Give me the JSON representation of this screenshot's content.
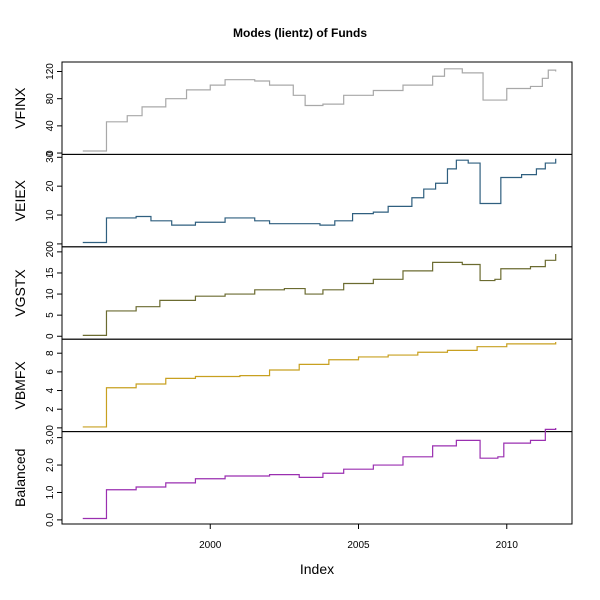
{
  "title": "Modes (lientz) of Funds",
  "xaxis": {
    "label": "Index",
    "xlim": [
      1995,
      2012.2
    ],
    "xticks": [
      2000,
      2005,
      2010
    ]
  },
  "chart_data": [
    {
      "type": "line",
      "ylabel": "VFINX",
      "color": "#a8a8a8",
      "ylim": [
        -2,
        134
      ],
      "yticks": [
        0,
        40,
        80,
        120
      ],
      "x": [
        1995.7,
        1996.5,
        1997.2,
        1997.7,
        1998.5,
        1999.2,
        2000,
        2000.5,
        2001.5,
        2002,
        2002.8,
        2003.2,
        2003.8,
        2004.5,
        2005.5,
        2006.5,
        2007.5,
        2007.9,
        2008.5,
        2009.2,
        2009.7,
        2010,
        2010.8,
        2011.2,
        2011.4,
        2011.65
      ],
      "values": [
        3,
        46,
        55,
        68,
        80,
        93,
        100,
        108,
        106,
        100,
        85,
        70,
        72,
        85,
        92,
        100,
        113,
        124,
        118,
        78,
        78,
        95,
        98,
        110,
        122,
        120
      ]
    },
    {
      "type": "line",
      "ylabel": "VEIEX",
      "color": "#2f5f7f",
      "ylim": [
        -1,
        31
      ],
      "yticks": [
        0,
        10,
        20,
        30
      ],
      "x": [
        1995.7,
        1996.5,
        1997.5,
        1998,
        1998.7,
        1999.5,
        2000.5,
        2001.5,
        2002,
        2003,
        2003.7,
        2004.2,
        2004.8,
        2005.5,
        2006,
        2006.8,
        2007.2,
        2007.6,
        2008,
        2008.3,
        2008.7,
        2009.1,
        2009.6,
        2009.8,
        2010.5,
        2011,
        2011.3,
        2011.65
      ],
      "values": [
        0.5,
        9,
        9.5,
        8,
        6.5,
        7.5,
        9,
        8,
        7,
        7,
        6.5,
        8,
        10.5,
        11,
        13,
        16,
        19,
        21,
        26,
        29,
        28,
        14,
        14,
        23,
        24,
        26,
        28,
        29.5
      ]
    },
    {
      "type": "line",
      "ylabel": "VGSTX",
      "color": "#6b6b30",
      "ylim": [
        -0.7,
        21.2
      ],
      "yticks": [
        0,
        5,
        10,
        15,
        20
      ],
      "x": [
        1995.7,
        1996.5,
        1997.5,
        1998.3,
        1999.5,
        2000.5,
        2001.5,
        2002.5,
        2003.2,
        2003.8,
        2004.5,
        2005.5,
        2006.5,
        2007.5,
        2008.5,
        2009.1,
        2009.6,
        2009.8,
        2010.8,
        2011.3,
        2011.65
      ],
      "values": [
        0.2,
        6,
        7,
        8.5,
        9.5,
        10,
        11,
        11.3,
        10,
        11,
        12.5,
        13.5,
        15.5,
        17.5,
        17,
        13.2,
        13.5,
        16,
        16.5,
        18,
        19.5
      ]
    },
    {
      "type": "line",
      "ylabel": "VBMFX",
      "color": "#c8a020",
      "ylim": [
        -0.4,
        9.5
      ],
      "yticks": [
        0,
        2,
        4,
        6,
        8
      ],
      "x": [
        1995.7,
        1996.5,
        1997.5,
        1998.5,
        1999.5,
        2001,
        2002,
        2003,
        2004,
        2005,
        2006,
        2007,
        2008,
        2009,
        2010,
        2011.65
      ],
      "values": [
        0.1,
        4.3,
        4.7,
        5.3,
        5.5,
        5.6,
        6.2,
        6.8,
        7.3,
        7.6,
        7.8,
        8.1,
        8.3,
        8.7,
        9.0,
        9.2
      ]
    },
    {
      "type": "line",
      "ylabel": "Balanced",
      "color": "#9a2fb0",
      "ylim": [
        -0.15,
        3.22
      ],
      "yticks": [
        {
          "value": 0,
          "label": "0.0"
        },
        {
          "value": 1,
          "label": "1.0"
        },
        {
          "value": 2,
          "label": "2.0"
        },
        {
          "value": 3,
          "label": "3.0"
        }
      ],
      "x": [
        1995.7,
        1996.5,
        1997.5,
        1998.5,
        1999.5,
        2000.5,
        2002,
        2003,
        2003.8,
        2004.5,
        2005.5,
        2006.5,
        2007.5,
        2008.3,
        2009.1,
        2009.7,
        2009.9,
        2010.8,
        2011.3,
        2011.65
      ],
      "values": [
        0.05,
        1.1,
        1.2,
        1.35,
        1.5,
        1.6,
        1.65,
        1.55,
        1.7,
        1.85,
        2.0,
        2.3,
        2.7,
        2.9,
        2.25,
        2.3,
        2.8,
        2.9,
        3.3,
        3.35
      ]
    }
  ]
}
